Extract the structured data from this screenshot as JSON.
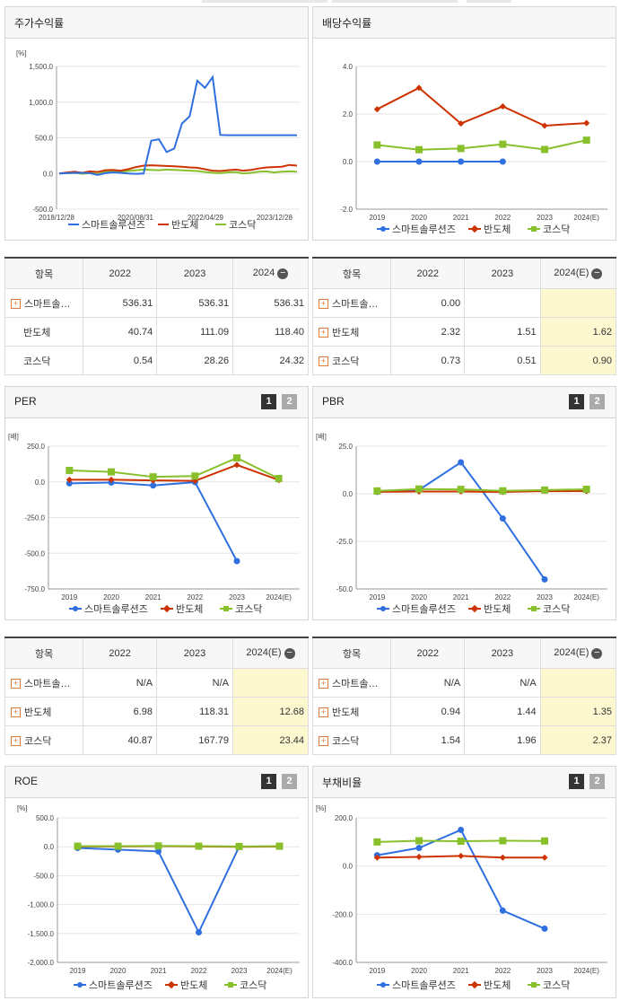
{
  "colors": {
    "series1": "#2f6fdf",
    "series2": "#cc3300",
    "series3": "#88c02b"
  },
  "legend": [
    "스마트솔루션즈",
    "반도체",
    "코스닥"
  ],
  "buttons": [
    "1",
    "2"
  ],
  "panels": {
    "stock": {
      "title": "주가수익률",
      "unit": "[%]",
      "chart_data": {
        "type": "line",
        "title": "주가수익률",
        "ylabel": "[%]",
        "ylim": [
          -500,
          1500
        ],
        "yticks": [
          "1,500.0",
          "1,000.0",
          "500.0",
          "0.0",
          "-500.0"
        ],
        "xticks": [
          "2018/12/28",
          "2020/08/31",
          "2022/04/29",
          "2023/12/28"
        ],
        "x_dates": [
          "2018/12/28",
          "2019/03",
          "2019/06",
          "2019/09",
          "2019/12",
          "2020/03",
          "2020/06",
          "2020/08/31",
          "2020/11",
          "2021/01",
          "2021/03",
          "2021/05",
          "2021/06",
          "2021/07",
          "2021/08",
          "2021/09",
          "2021/10",
          "2021/11",
          "2021/12",
          "2022/01",
          "2022/02",
          "2022/03",
          "2022/04/29",
          "2022/07",
          "2022/10",
          "2023/01",
          "2023/04",
          "2023/07",
          "2023/10",
          "2023/12/28",
          "2024/03",
          "2024/06"
        ],
        "series": [
          {
            "name": "스마트솔루션즈",
            "values": [
              0,
              5,
              10,
              8,
              5,
              -20,
              5,
              15,
              10,
              0,
              -5,
              0,
              460,
              480,
              300,
              350,
              700,
              800,
              1300,
              1200,
              1350,
              540,
              536,
              536,
              536,
              536,
              536,
              536,
              536,
              536,
              536,
              536
            ]
          },
          {
            "name": "반도체",
            "values": [
              0,
              15,
              25,
              10,
              30,
              20,
              45,
              50,
              40,
              60,
              90,
              110,
              115,
              110,
              105,
              100,
              95,
              85,
              80,
              60,
              40,
              35,
              45,
              55,
              40,
              50,
              70,
              85,
              90,
              95,
              120,
              110
            ]
          },
          {
            "name": "코스닥",
            "values": [
              0,
              5,
              10,
              -5,
              10,
              -10,
              20,
              30,
              25,
              35,
              45,
              55,
              50,
              45,
              55,
              50,
              45,
              40,
              35,
              20,
              10,
              5,
              15,
              20,
              0,
              10,
              25,
              30,
              15,
              25,
              30,
              25
            ]
          }
        ]
      },
      "table": {
        "headers": [
          "항목",
          "2022",
          "2023",
          "2024"
        ],
        "rows": [
          {
            "name": "스마트솔…",
            "values": [
              "536.31",
              "536.31",
              "536.31"
            ]
          },
          {
            "name": "반도체",
            "values": [
              "40.74",
              "111.09",
              "118.40"
            ]
          },
          {
            "name": "코스닥",
            "values": [
              "0.54",
              "28.26",
              "24.32"
            ]
          }
        ]
      }
    },
    "dividend": {
      "title": "배당수익률",
      "chart_data": {
        "type": "line",
        "title": "배당수익률",
        "ylim": [
          -2.0,
          4.0
        ],
        "yticks": [
          "4.0",
          "2.0",
          "0.0",
          "-2.0"
        ],
        "categories": [
          "2019",
          "2020",
          "2021",
          "2022",
          "2023",
          "2024(E)"
        ],
        "series": [
          {
            "name": "스마트솔루션즈",
            "values": [
              0.0,
              0.0,
              0.0,
              0.0,
              null,
              null
            ]
          },
          {
            "name": "반도체",
            "values": [
              2.2,
              3.1,
              1.6,
              2.32,
              1.51,
              1.62
            ]
          },
          {
            "name": "코스닥",
            "values": [
              0.7,
              0.5,
              0.55,
              0.73,
              0.51,
              0.9
            ]
          }
        ]
      },
      "table": {
        "headers": [
          "항목",
          "2022",
          "2023",
          "2024(E)"
        ],
        "rows": [
          {
            "name": "스마트솔…",
            "values": [
              "0.00",
              "",
              ""
            ]
          },
          {
            "name": "반도체",
            "values": [
              "2.32",
              "1.51",
              "1.62"
            ]
          },
          {
            "name": "코스닥",
            "values": [
              "0.73",
              "0.51",
              "0.90"
            ]
          }
        ]
      }
    },
    "per": {
      "title": "PER",
      "unit": "[배]",
      "chart_data": {
        "type": "line",
        "title": "PER",
        "ylabel": "[배]",
        "ylim": [
          -750,
          250
        ],
        "yticks": [
          "250.0",
          "0.0",
          "-250.0",
          "-500.0",
          "-750.0"
        ],
        "categories": [
          "2019",
          "2020",
          "2021",
          "2022",
          "2023",
          "2024(E)"
        ],
        "series": [
          {
            "name": "스마트솔루션즈",
            "values": [
              -10,
              -5,
              -25,
              -2,
              -555,
              null
            ]
          },
          {
            "name": "반도체",
            "values": [
              15,
              15,
              10,
              6.98,
              118.31,
              12.68
            ]
          },
          {
            "name": "코스닥",
            "values": [
              80,
              70,
              35,
              40.87,
              167.79,
              23.44
            ]
          }
        ]
      },
      "table": {
        "headers": [
          "항목",
          "2022",
          "2023",
          "2024(E)"
        ],
        "rows": [
          {
            "name": "스마트솔…",
            "values": [
              "N/A",
              "N/A",
              ""
            ]
          },
          {
            "name": "반도체",
            "values": [
              "6.98",
              "118.31",
              "12.68"
            ]
          },
          {
            "name": "코스닥",
            "values": [
              "40.87",
              "167.79",
              "23.44"
            ]
          }
        ]
      }
    },
    "pbr": {
      "title": "PBR",
      "unit": "[배]",
      "chart_data": {
        "type": "line",
        "title": "PBR",
        "ylabel": "[배]",
        "ylim": [
          -50,
          25
        ],
        "yticks": [
          "25.0",
          "0.0",
          "-25.0",
          "-50.0"
        ],
        "categories": [
          "2019",
          "2020",
          "2021",
          "2022",
          "2023",
          "2024(E)"
        ],
        "series": [
          {
            "name": "스마트솔루션즈",
            "values": [
              1,
              2,
              16.5,
              -13,
              -45,
              null
            ]
          },
          {
            "name": "반도체",
            "values": [
              1,
              1.2,
              1.2,
              0.94,
              1.44,
              1.35
            ]
          },
          {
            "name": "코스닥",
            "values": [
              1.5,
              2.5,
              2.3,
              1.54,
              1.96,
              2.37
            ]
          }
        ]
      },
      "table": {
        "headers": [
          "항목",
          "2022",
          "2023",
          "2024(E)"
        ],
        "rows": [
          {
            "name": "스마트솔…",
            "values": [
              "N/A",
              "N/A",
              ""
            ]
          },
          {
            "name": "반도체",
            "values": [
              "0.94",
              "1.44",
              "1.35"
            ]
          },
          {
            "name": "코스닥",
            "values": [
              "1.54",
              "1.96",
              "2.37"
            ]
          }
        ]
      }
    },
    "roe": {
      "title": "ROE",
      "unit": "[%]",
      "chart_data": {
        "type": "line",
        "title": "ROE",
        "ylabel": "[%]",
        "ylim": [
          -2000,
          500
        ],
        "yticks": [
          "500.0",
          "0.0",
          "-500.0",
          "-1,000.0",
          "-1,500.0",
          "-2,000.0"
        ],
        "categories": [
          "2019",
          "2020",
          "2021",
          "2022",
          "2023",
          "2024(E)"
        ],
        "series": [
          {
            "name": "스마트솔루션즈",
            "values": [
              -20,
              -50,
              -80,
              -1480,
              0,
              null
            ]
          },
          {
            "name": "반도체",
            "values": [
              5,
              5,
              10,
              5,
              0,
              5
            ]
          },
          {
            "name": "코스닥",
            "values": [
              10,
              10,
              15,
              10,
              5,
              10
            ]
          }
        ]
      }
    },
    "debt": {
      "title": "부채비율",
      "unit": "[%]",
      "chart_data": {
        "type": "line",
        "title": "부채비율",
        "ylabel": "[%]",
        "ylim": [
          -400,
          200
        ],
        "yticks": [
          "200.0",
          "0.0",
          "-200.0",
          "-400.0"
        ],
        "categories": [
          "2019",
          "2020",
          "2021",
          "2022",
          "2023",
          "2024(E)"
        ],
        "series": [
          {
            "name": "스마트솔루션즈",
            "values": [
              45,
              75,
              150,
              -185,
              -260,
              null
            ]
          },
          {
            "name": "반도체",
            "values": [
              35,
              38,
              42,
              35,
              35,
              null
            ]
          },
          {
            "name": "코스닥",
            "values": [
              100,
              105,
              103,
              105,
              104,
              null
            ]
          }
        ]
      }
    }
  }
}
